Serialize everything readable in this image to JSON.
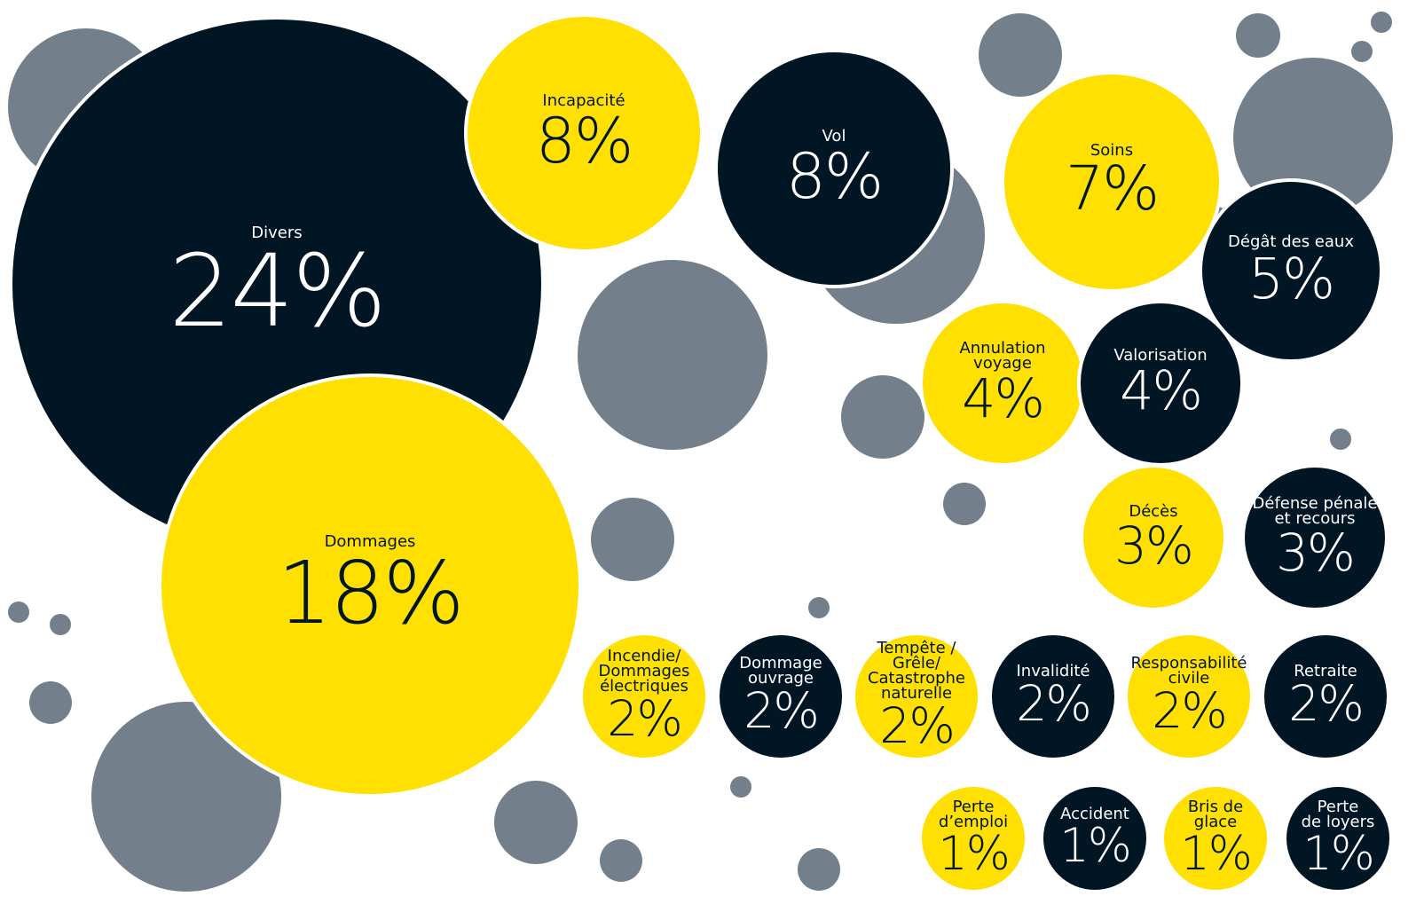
{
  "chart_data": {
    "type": "bubble",
    "categories": [
      "Divers",
      "Dommages",
      "Incapacité",
      "Vol",
      "Soins",
      "Dégât des eaux",
      "Annulation\nvoyage",
      "Valorisation",
      "Décès",
      "Défense pénale\net recours",
      "Incendie/\nDommages\nélectriques",
      "Dommage\nouvrage",
      "Tempête /\nGrêle/\nCatastrophe\nnaturelle",
      "Invalidité",
      "Responsabilité\ncivile",
      "Retraite",
      "Perte\nd’emploi",
      "Accident",
      "Bris de\nglace",
      "Perte\nde loyers"
    ],
    "values": [
      24,
      18,
      8,
      8,
      7,
      5,
      4,
      4,
      3,
      3,
      2,
      2,
      2,
      2,
      2,
      2,
      1,
      1,
      1,
      1
    ],
    "value_labels": [
      "24%",
      "18%",
      "8%",
      "8%",
      "7%",
      "5%",
      "4%",
      "4%",
      "3%",
      "3%",
      "2%",
      "2%",
      "2%",
      "2%",
      "2%",
      "2%",
      "1%",
      "1%",
      "1%",
      "1%"
    ],
    "colors": [
      "#011624",
      "#ffe000",
      "#ffe000",
      "#011624",
      "#ffe000",
      "#011624",
      "#ffe000",
      "#011624",
      "#ffe000",
      "#011624",
      "#ffe000",
      "#011624",
      "#ffe000",
      "#011624",
      "#ffe000",
      "#011624",
      "#ffe000",
      "#011624",
      "#ffe000",
      "#011624"
    ]
  }
}
